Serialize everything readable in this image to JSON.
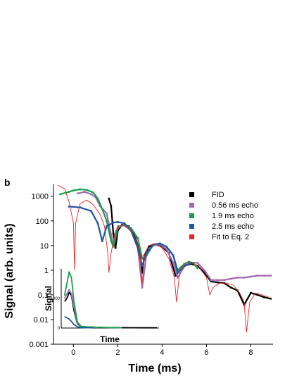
{
  "panel_label": "b",
  "chart_data": {
    "type": "scatter",
    "yscale": "log",
    "xlabel": "Time (ms)",
    "ylabel": "Signal (arb. units)",
    "xlim": [
      -0.9,
      9.0
    ],
    "ylim": [
      0.001,
      3000
    ],
    "x_ticks": [
      "0",
      "2",
      "4",
      "6",
      "8"
    ],
    "y_ticks": [
      "1000",
      "100",
      "10",
      "1",
      "0.1",
      "0.01",
      "0.001"
    ],
    "legend": {
      "placement": "right",
      "entries": [
        {
          "label": "FID",
          "color": "#000000"
        },
        {
          "label": "0.56 ms echo",
          "color": "#a26ab0"
        },
        {
          "label": "1.9 ms echo",
          "color": "#14a14a"
        },
        {
          "label": "2.5 ms echo",
          "color": "#1a57a8"
        },
        {
          "label": "Fit to Eq. 2",
          "color": "#ee2222"
        }
      ]
    },
    "series": [
      {
        "name": "FID",
        "color": "#000000",
        "x": [
          1.6,
          1.7,
          1.8,
          1.9,
          2.0,
          2.2,
          2.5,
          2.8,
          3.0,
          3.1,
          3.2,
          3.4,
          3.7,
          4.0,
          4.3,
          4.6,
          4.8,
          5.0,
          5.3,
          5.6,
          5.9,
          6.2,
          6.5,
          6.8,
          7.1,
          7.4,
          7.7,
          8.0,
          8.3,
          8.6,
          8.9
        ],
        "y": [
          800,
          400,
          30,
          8,
          40,
          70,
          60,
          20,
          5,
          0.8,
          4,
          9,
          11,
          9,
          5,
          0.6,
          1.0,
          1.5,
          1.8,
          1.5,
          0.8,
          0.35,
          0.32,
          0.3,
          0.2,
          0.15,
          0.04,
          0.12,
          0.1,
          0.08,
          0.07
        ]
      },
      {
        "name": "0.56 ms echo",
        "color": "#a26ab0",
        "x": [
          0.2,
          0.5,
          0.8,
          1.0,
          1.2,
          1.5,
          1.8,
          2.0,
          2.3,
          2.6,
          2.9,
          3.1,
          3.3,
          3.6,
          3.9,
          4.2,
          4.5,
          4.7,
          5.0,
          5.3,
          5.6,
          5.9,
          6.2,
          6.5,
          6.8,
          7.1,
          7.4,
          7.7,
          8.0,
          8.3,
          8.6,
          8.9
        ],
        "y": [
          1300,
          1500,
          1200,
          900,
          400,
          200,
          10,
          60,
          65,
          40,
          8,
          0.2,
          5,
          10,
          11,
          7,
          2,
          0.5,
          1.4,
          2.0,
          2.0,
          1.0,
          0.4,
          0.4,
          0.4,
          0.45,
          0.5,
          0.5,
          0.55,
          0.6,
          0.6,
          0.6
        ]
      },
      {
        "name": "1.9 ms echo",
        "color": "#14a14a",
        "x": [
          -0.6,
          -0.2,
          0.0,
          0.3,
          0.6,
          0.9,
          1.1,
          1.3,
          1.5,
          1.7,
          1.8,
          2.0,
          2.3,
          2.6,
          2.9,
          3.1,
          3.3,
          3.6,
          3.9,
          4.2,
          4.5,
          4.7,
          5.0,
          5.2,
          5.4,
          5.6
        ],
        "y": [
          1200,
          1500,
          1700,
          1900,
          1800,
          1400,
          800,
          300,
          100,
          15,
          9,
          50,
          75,
          50,
          20,
          3,
          4,
          11,
          12,
          9,
          4,
          1.0,
          1.8,
          2.2,
          2.0,
          1.2
        ]
      },
      {
        "name": "2.5 ms echo",
        "color": "#1a57a8",
        "x": [
          -0.2,
          0.3,
          0.8,
          1.1,
          1.3,
          1.5,
          1.8,
          2.0,
          2.3,
          2.6,
          2.9,
          3.1,
          3.3,
          3.6,
          3.9,
          4.2,
          4.5,
          4.7,
          5.0,
          5.3
        ],
        "y": [
          380,
          350,
          250,
          80,
          15,
          60,
          85,
          90,
          80,
          40,
          8,
          1.5,
          5,
          11,
          12,
          9,
          4,
          0.8,
          1.5,
          2.0
        ]
      },
      {
        "name": "Fit to Eq. 2",
        "color": "#ee2222",
        "x": [
          -0.7,
          -0.4,
          -0.2,
          0.0,
          0.05,
          0.1,
          0.3,
          0.6,
          0.9,
          1.2,
          1.4,
          1.55,
          1.6,
          1.7,
          1.9,
          2.2,
          2.5,
          2.8,
          3.0,
          3.1,
          3.2,
          3.4,
          3.7,
          4.0,
          4.3,
          4.55,
          4.65,
          4.8,
          5.1,
          5.4,
          5.7,
          6.0,
          6.15,
          6.3,
          6.6,
          6.9,
          7.2,
          7.5,
          7.7,
          7.8,
          7.95,
          8.2,
          8.5,
          8.8
        ],
        "y": [
          2800,
          2000,
          600,
          80,
          1,
          80,
          500,
          700,
          450,
          180,
          60,
          5,
          0.8,
          5,
          40,
          70,
          50,
          20,
          5,
          0.3,
          4,
          10,
          12,
          8,
          3,
          0.5,
          0.05,
          1.0,
          2.0,
          2.0,
          1.2,
          0.5,
          0.1,
          0.2,
          0.3,
          0.3,
          0.25,
          0.12,
          0.05,
          0.003,
          0.05,
          0.12,
          0.1,
          0.08
        ]
      }
    ]
  },
  "inset": {
    "xlabel": "Time",
    "ylabel": "Signal",
    "y_ticks": [
      "1000",
      "0"
    ],
    "series": [
      {
        "name": "FID",
        "color": "#000000",
        "x": [
          0.1,
          0.3,
          0.5,
          0.7,
          0.9,
          1.2,
          1.5,
          2,
          3,
          4,
          5,
          6,
          7,
          8
        ],
        "y": [
          900,
          1000,
          1200,
          1100,
          600,
          150,
          40,
          30,
          20,
          15,
          12,
          10,
          8,
          6
        ]
      },
      {
        "name": "0.56 ms echo",
        "color": "#a26ab0",
        "x": [
          0.1,
          0.3,
          0.5,
          0.7,
          0.9,
          1.2,
          1.5,
          2,
          3
        ],
        "y": [
          1000,
          1150,
          1300,
          1150,
          700,
          180,
          40,
          30,
          20
        ]
      },
      {
        "name": "1.9 ms echo",
        "color": "#14a14a",
        "x": [
          0.1,
          0.3,
          0.5,
          0.7,
          0.9,
          1.2,
          1.5,
          2,
          3,
          4,
          5
        ],
        "y": [
          1100,
          1500,
          1900,
          1700,
          900,
          200,
          60,
          40,
          25,
          15,
          10
        ]
      },
      {
        "name": "2.5 ms echo",
        "color": "#1a57a8",
        "x": [
          0.1,
          0.3,
          0.5,
          0.7,
          0.9,
          1.2,
          1.5,
          2,
          2.5
        ],
        "y": [
          380,
          350,
          300,
          220,
          120,
          40,
          15,
          10,
          8
        ]
      }
    ]
  }
}
